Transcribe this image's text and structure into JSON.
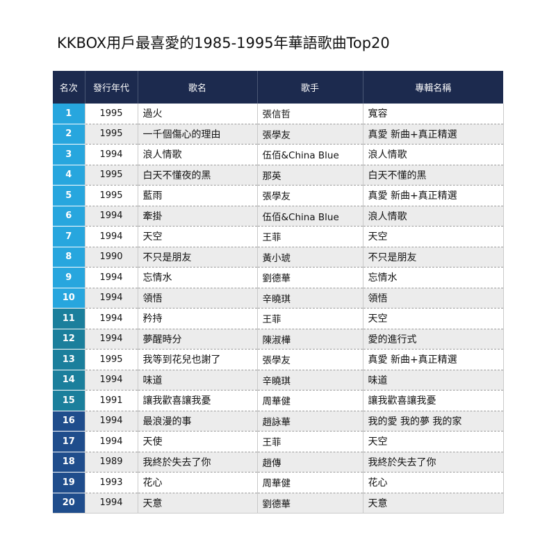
{
  "title": "KKBOX用戶最喜愛的1985-1995年華語歌曲Top20",
  "colors": {
    "header": "#1c2a4e",
    "rank_light": "#27a6de",
    "rank_mid": "#1b7f9c",
    "rank_dark": "#1f4d8c"
  },
  "table": {
    "headers": [
      "名次",
      "發行年代",
      "歌名",
      "歌手",
      "專輯名稱"
    ],
    "rows": [
      {
        "rank": "1",
        "year": "1995",
        "song": "過火",
        "singer": "張信哲",
        "album": "寬容"
      },
      {
        "rank": "2",
        "year": "1995",
        "song": "一千個傷心的理由",
        "singer": "張學友",
        "album": "真愛 新曲+真正精選"
      },
      {
        "rank": "3",
        "year": "1994",
        "song": "浪人情歌",
        "singer": "伍佰&China Blue",
        "album": "浪人情歌"
      },
      {
        "rank": "4",
        "year": "1995",
        "song": "白天不懂夜的黑",
        "singer": "那英",
        "album": "白天不懂的黑"
      },
      {
        "rank": "5",
        "year": "1995",
        "song": "藍雨",
        "singer": "張學友",
        "album": "真愛 新曲+真正精選"
      },
      {
        "rank": "6",
        "year": "1994",
        "song": "牽掛",
        "singer": "伍佰&China Blue",
        "album": "浪人情歌"
      },
      {
        "rank": "7",
        "year": "1994",
        "song": "天空",
        "singer": "王菲",
        "album": "天空"
      },
      {
        "rank": "8",
        "year": "1990",
        "song": "不只是朋友",
        "singer": "黃小琥",
        "album": "不只是朋友"
      },
      {
        "rank": "9",
        "year": "1994",
        "song": "忘情水",
        "singer": "劉德華",
        "album": "忘情水"
      },
      {
        "rank": "10",
        "year": "1994",
        "song": "領悟",
        "singer": "辛曉琪",
        "album": "領悟"
      },
      {
        "rank": "11",
        "year": "1994",
        "song": "矜持",
        "singer": "王菲",
        "album": "天空"
      },
      {
        "rank": "12",
        "year": "1994",
        "song": "夢醒時分",
        "singer": "陳淑樺",
        "album": "愛的進行式"
      },
      {
        "rank": "13",
        "year": "1995",
        "song": "我等到花兒也謝了",
        "singer": "張學友",
        "album": "真愛 新曲+真正精選"
      },
      {
        "rank": "14",
        "year": "1994",
        "song": "味道",
        "singer": "辛曉琪",
        "album": "味道"
      },
      {
        "rank": "15",
        "year": "1991",
        "song": "讓我歡喜讓我憂",
        "singer": "周華健",
        "album": "讓我歡喜讓我憂"
      },
      {
        "rank": "16",
        "year": "1994",
        "song": "最浪漫的事",
        "singer": "趙詠華",
        "album": "我的愛 我的夢 我的家"
      },
      {
        "rank": "17",
        "year": "1994",
        "song": "天使",
        "singer": "王菲",
        "album": "天空"
      },
      {
        "rank": "18",
        "year": "1989",
        "song": "我終於失去了你",
        "singer": "趙傳",
        "album": "我終於失去了你"
      },
      {
        "rank": "19",
        "year": "1993",
        "song": "花心",
        "singer": "周華健",
        "album": "花心"
      },
      {
        "rank": "20",
        "year": "1994",
        "song": "天意",
        "singer": "劉德華",
        "album": "天意"
      }
    ]
  }
}
